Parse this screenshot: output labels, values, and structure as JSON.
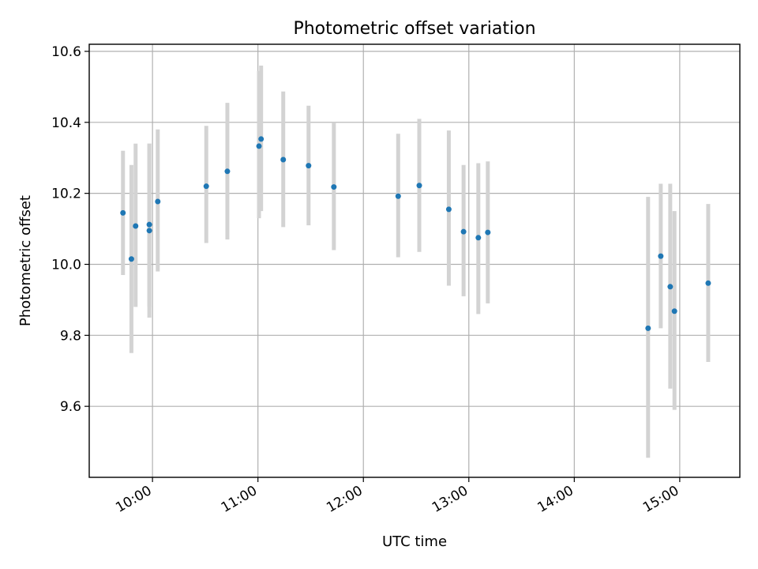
{
  "chart_data": {
    "type": "scatter",
    "title": "Photometric offset variation",
    "xlabel": "UTC time",
    "ylabel": "Photometric offset",
    "xlim_hours": [
      9.4,
      15.57
    ],
    "ylim": [
      9.4,
      10.62
    ],
    "grid": true,
    "x_ticks": [
      {
        "hour": 10,
        "label": "10:00"
      },
      {
        "hour": 11,
        "label": "11:00"
      },
      {
        "hour": 12,
        "label": "12:00"
      },
      {
        "hour": 13,
        "label": "13:00"
      },
      {
        "hour": 14,
        "label": "14:00"
      },
      {
        "hour": 15,
        "label": "15:00"
      }
    ],
    "y_ticks": [
      {
        "value": 9.6,
        "label": "9.6"
      },
      {
        "value": 9.8,
        "label": "9.8"
      },
      {
        "value": 10.0,
        "label": "10.0"
      },
      {
        "value": 10.2,
        "label": "10.2"
      },
      {
        "value": 10.4,
        "label": "10.4"
      },
      {
        "value": 10.6,
        "label": "10.6"
      }
    ],
    "points": [
      {
        "x": 9.72,
        "y": 10.145,
        "lo": 9.97,
        "hi": 10.32
      },
      {
        "x": 9.8,
        "y": 10.015,
        "lo": 9.75,
        "hi": 10.28
      },
      {
        "x": 9.84,
        "y": 10.108,
        "lo": 9.88,
        "hi": 10.34
      },
      {
        "x": 9.97,
        "y": 10.112,
        "lo": 9.88,
        "hi": 10.34
      },
      {
        "x": 9.97,
        "y": 10.095,
        "lo": 9.85,
        "hi": 10.34
      },
      {
        "x": 10.05,
        "y": 10.177,
        "lo": 9.98,
        "hi": 10.38
      },
      {
        "x": 10.51,
        "y": 10.22,
        "lo": 10.06,
        "hi": 10.39
      },
      {
        "x": 10.71,
        "y": 10.262,
        "lo": 10.07,
        "hi": 10.455
      },
      {
        "x": 11.01,
        "y": 10.333,
        "lo": 10.13,
        "hi": 10.545
      },
      {
        "x": 11.03,
        "y": 10.353,
        "lo": 10.15,
        "hi": 10.56
      },
      {
        "x": 11.24,
        "y": 10.295,
        "lo": 10.105,
        "hi": 10.487
      },
      {
        "x": 11.48,
        "y": 10.278,
        "lo": 10.11,
        "hi": 10.447
      },
      {
        "x": 11.72,
        "y": 10.218,
        "lo": 10.04,
        "hi": 10.4
      },
      {
        "x": 12.33,
        "y": 10.192,
        "lo": 10.02,
        "hi": 10.368
      },
      {
        "x": 12.53,
        "y": 10.222,
        "lo": 10.035,
        "hi": 10.41
      },
      {
        "x": 12.81,
        "y": 10.155,
        "lo": 9.94,
        "hi": 10.377
      },
      {
        "x": 12.95,
        "y": 10.092,
        "lo": 9.91,
        "hi": 10.28
      },
      {
        "x": 13.09,
        "y": 10.075,
        "lo": 9.86,
        "hi": 10.285
      },
      {
        "x": 13.18,
        "y": 10.09,
        "lo": 9.89,
        "hi": 10.29
      },
      {
        "x": 14.7,
        "y": 9.82,
        "lo": 9.455,
        "hi": 10.19
      },
      {
        "x": 14.82,
        "y": 10.023,
        "lo": 9.82,
        "hi": 10.227
      },
      {
        "x": 14.91,
        "y": 9.937,
        "lo": 9.65,
        "hi": 10.227
      },
      {
        "x": 14.95,
        "y": 9.868,
        "lo": 9.59,
        "hi": 10.15
      },
      {
        "x": 15.27,
        "y": 9.947,
        "lo": 9.725,
        "hi": 10.17
      }
    ]
  }
}
